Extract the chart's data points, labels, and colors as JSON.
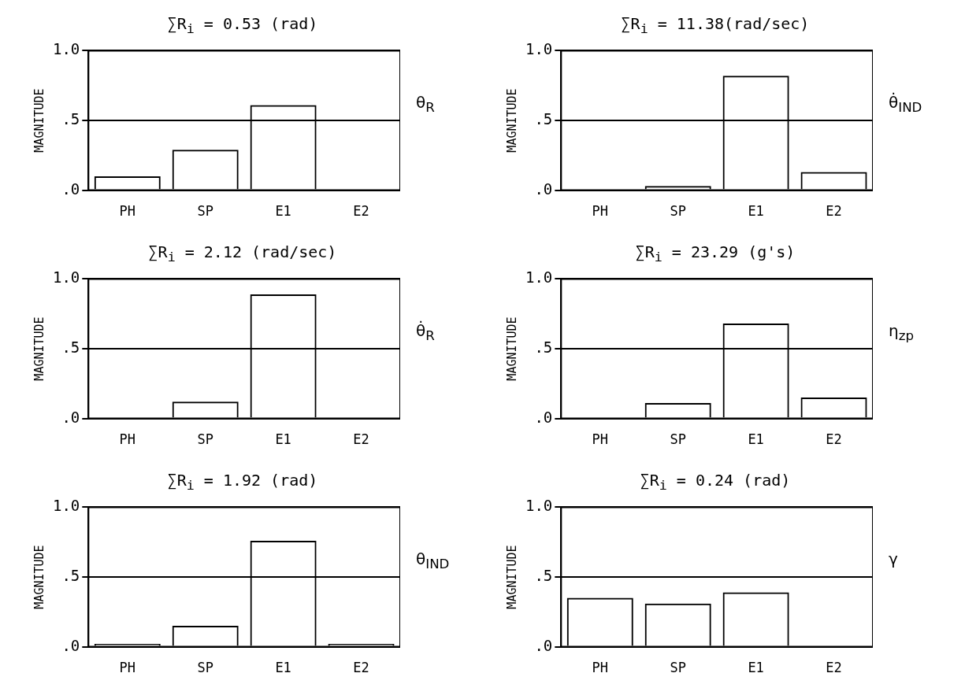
{
  "chart_data": [
    {
      "type": "bar",
      "title": "∑R$_{i}$ = 0.53 (rad)",
      "ylabel": "MAGNITUDE",
      "y2label": "θ$_{R}$",
      "categories": [
        "PH",
        "SP",
        "E1",
        "E2"
      ],
      "values": [
        0.1,
        0.29,
        0.61,
        0
      ],
      "color": "#000000",
      "ylim": [
        0,
        1
      ],
      "yticks": [
        {
          "value": 0,
          "label": ".0"
        },
        {
          "value": 0.5,
          "label": ".5"
        },
        {
          "value": 1,
          "label": "1.0"
        }
      ],
      "grid": "y"
    },
    {
      "type": "bar",
      "title": "∑R$_{i}$ = 11.38(rad/sec)",
      "ylabel": "MAGNITUDE",
      "y2label": "θ̇$_{IND}$",
      "categories": [
        "PH",
        "SP",
        "E1",
        "E2"
      ],
      "values": [
        0,
        0.03,
        0.82,
        0.13
      ],
      "color": "#000000",
      "ylim": [
        0,
        1
      ],
      "yticks": [
        {
          "value": 0,
          "label": ".0"
        },
        {
          "value": 0.5,
          "label": ".5"
        },
        {
          "value": 1,
          "label": "1.0"
        }
      ],
      "grid": "y"
    },
    {
      "type": "bar",
      "title": "∑R$_{i}$ = 2.12 (rad/sec)",
      "ylabel": "MAGNITUDE",
      "y2label": "θ̇$_{R}$",
      "categories": [
        "PH",
        "SP",
        "E1",
        "E2"
      ],
      "values": [
        0,
        0.12,
        0.89,
        0
      ],
      "color": "#000000",
      "ylim": [
        0,
        1
      ],
      "yticks": [
        {
          "value": 0,
          "label": ".0"
        },
        {
          "value": 0.5,
          "label": ".5"
        },
        {
          "value": 1,
          "label": "1.0"
        }
      ],
      "grid": "y"
    },
    {
      "type": "bar",
      "title": "∑R$_{i}$ = 23.29 (g's)",
      "ylabel": "MAGNITUDE",
      "y2label": "η$_{zp}$",
      "categories": [
        "PH",
        "SP",
        "E1",
        "E2"
      ],
      "values": [
        0,
        0.11,
        0.68,
        0.15
      ],
      "color": "#000000",
      "ylim": [
        0,
        1
      ],
      "yticks": [
        {
          "value": 0,
          "label": ".0"
        },
        {
          "value": 0.5,
          "label": ".5"
        },
        {
          "value": 1,
          "label": "1.0"
        }
      ],
      "grid": "y"
    },
    {
      "type": "bar",
      "title": "∑R$_{i}$ = 1.92 (rad)",
      "ylabel": "MAGNITUDE",
      "y2label": "θ$_{IND}$",
      "categories": [
        "PH",
        "SP",
        "E1",
        "E2"
      ],
      "values": [
        0.02,
        0.15,
        0.76,
        0.02
      ],
      "color": "#000000",
      "ylim": [
        0,
        1
      ],
      "yticks": [
        {
          "value": 0,
          "label": ".0"
        },
        {
          "value": 0.5,
          "label": ".5"
        },
        {
          "value": 1,
          "label": "1.0"
        }
      ],
      "grid": "y"
    },
    {
      "type": "bar",
      "title": "∑R$_{i}$ = 0.24 (rad)",
      "ylabel": "MAGNITUDE",
      "y2label": "γ",
      "categories": [
        "PH",
        "SP",
        "E1",
        "E2"
      ],
      "values": [
        0.35,
        0.31,
        0.39,
        0
      ],
      "color": "#000000",
      "ylim": [
        0,
        1
      ],
      "yticks": [
        {
          "value": 0,
          "label": ".0"
        },
        {
          "value": 0.5,
          "label": ".5"
        },
        {
          "value": 1,
          "label": "1.0"
        }
      ],
      "grid": "y"
    }
  ]
}
